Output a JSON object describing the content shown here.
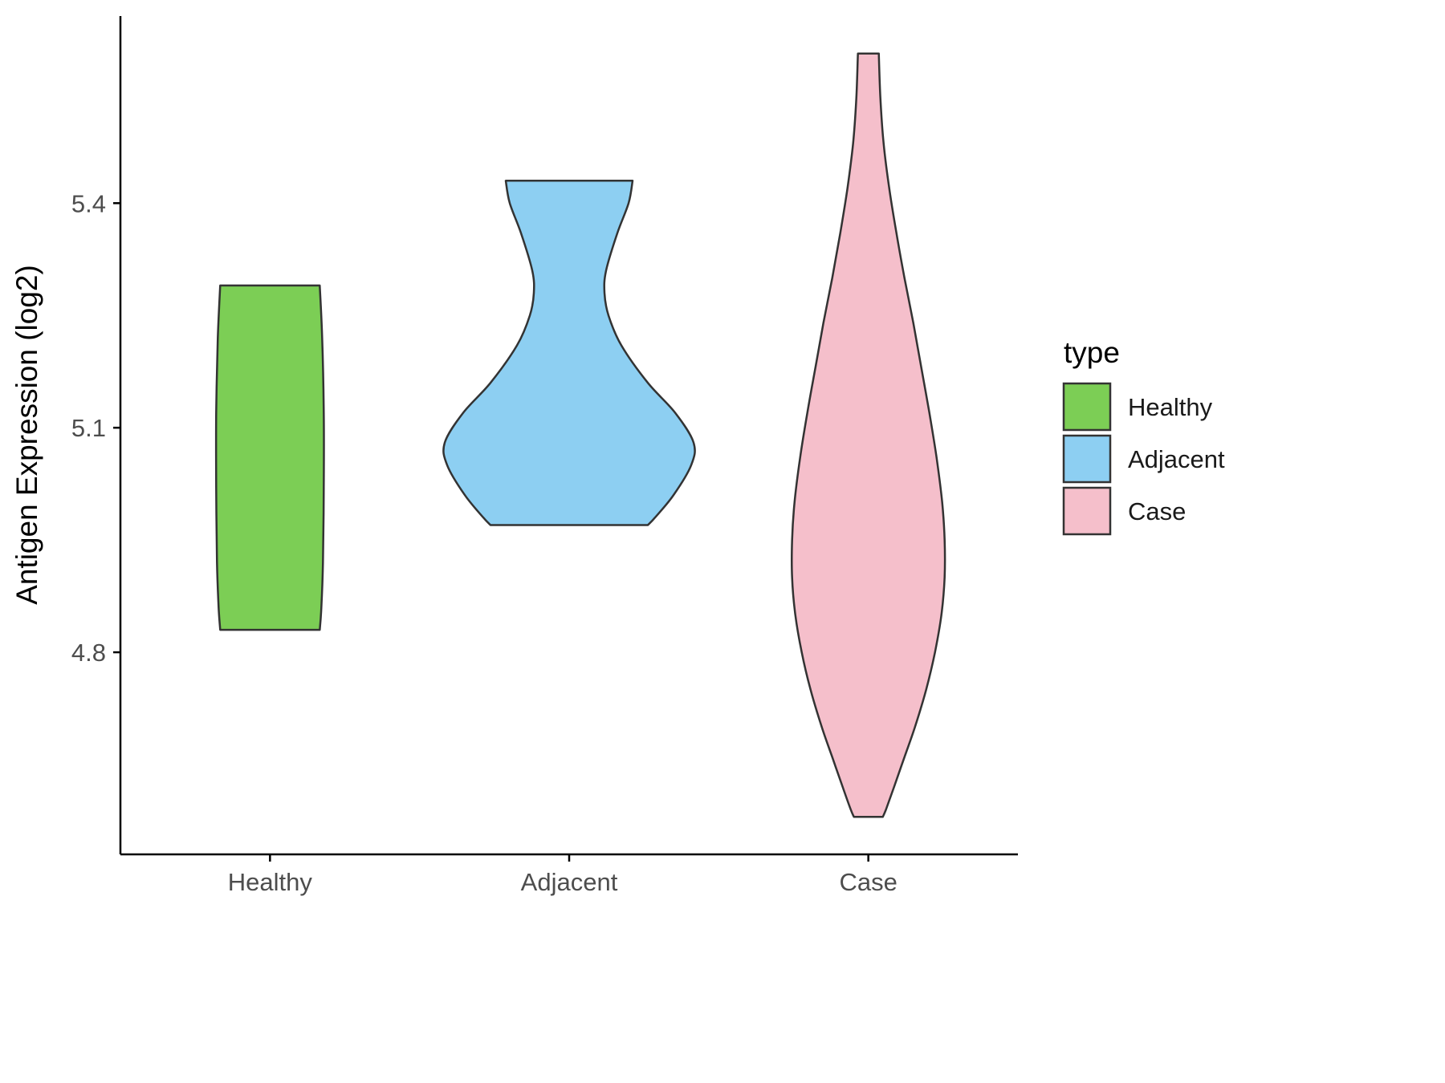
{
  "chart_data": {
    "type": "violin",
    "title": "",
    "xlabel": "",
    "ylabel": "Antigen Expression (log2)",
    "categories": [
      "Healthy",
      "Adjacent",
      "Case"
    ],
    "ytick_labels": [
      "4.8",
      "5.1",
      "5.4"
    ],
    "ytick_values": [
      4.8,
      5.1,
      5.4
    ],
    "ylim": [
      4.53,
      5.65
    ],
    "grid": "off",
    "legend_title": "type",
    "legend_position": "right",
    "colors": {
      "outline": "#333333",
      "axis": "#000000",
      "tick_text": "#4d4d4d",
      "background": "#ffffff"
    },
    "series": [
      {
        "name": "Healthy",
        "color": "#7CCE55",
        "range": [
          4.83,
          5.29
        ],
        "profile": [
          [
            5.29,
            62
          ],
          [
            5.22,
            65
          ],
          [
            5.12,
            67
          ],
          [
            5.02,
            67
          ],
          [
            4.92,
            66
          ],
          [
            4.86,
            64
          ],
          [
            4.83,
            62
          ]
        ]
      },
      {
        "name": "Adjacent",
        "color": "#8DCFF2",
        "range": [
          4.97,
          5.43
        ],
        "profile": [
          [
            5.43,
            79
          ],
          [
            5.4,
            74
          ],
          [
            5.36,
            60
          ],
          [
            5.31,
            46
          ],
          [
            5.28,
            44
          ],
          [
            5.25,
            49
          ],
          [
            5.21,
            65
          ],
          [
            5.16,
            98
          ],
          [
            5.12,
            132
          ],
          [
            5.08,
            155
          ],
          [
            5.05,
            152
          ],
          [
            5.01,
            130
          ],
          [
            4.98,
            107
          ],
          [
            4.97,
            98
          ]
        ]
      },
      {
        "name": "Case",
        "color": "#F5BFCB",
        "range": [
          4.58,
          5.6
        ],
        "profile": [
          [
            5.6,
            13
          ],
          [
            5.54,
            15
          ],
          [
            5.48,
            19
          ],
          [
            5.42,
            26
          ],
          [
            5.36,
            35
          ],
          [
            5.3,
            45
          ],
          [
            5.24,
            56
          ],
          [
            5.18,
            66
          ],
          [
            5.12,
            76
          ],
          [
            5.06,
            85
          ],
          [
            5.0,
            92
          ],
          [
            4.95,
            95
          ],
          [
            4.9,
            95
          ],
          [
            4.85,
            91
          ],
          [
            4.8,
            83
          ],
          [
            4.75,
            72
          ],
          [
            4.7,
            58
          ],
          [
            4.66,
            45
          ],
          [
            4.62,
            32
          ],
          [
            4.59,
            22
          ],
          [
            4.58,
            18
          ]
        ]
      }
    ]
  }
}
